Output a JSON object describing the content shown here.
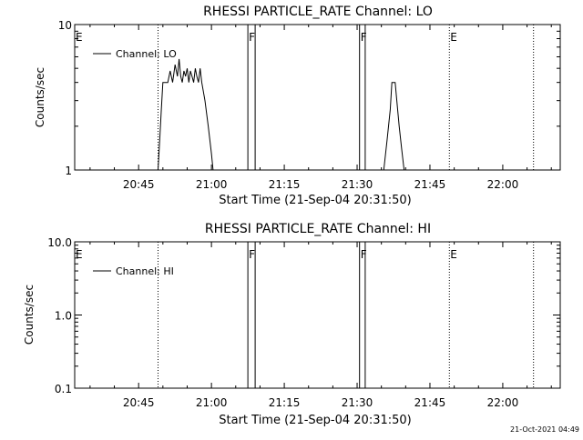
{
  "footer": {
    "timestamp": "21-Oct-2021 04:49"
  },
  "colors": {
    "background": "#ffffff",
    "ink": "#000000"
  },
  "chart_data": [
    {
      "type": "line",
      "title": "RHESSI PARTICLE_RATE Channel: LO",
      "xlabel": "Start Time (21-Sep-04 20:31:50)",
      "ylabel": "Counts/sec",
      "yscale": "log",
      "xlim": [
        "20:31:50",
        "22:11:50"
      ],
      "ylim": [
        1,
        10
      ],
      "xticks": [
        "20:45",
        "21:00",
        "21:15",
        "21:30",
        "21:45",
        "22:00"
      ],
      "yticks": [
        "1",
        "10"
      ],
      "legend": {
        "placement": "top-left",
        "entries": [
          "Channel: LO"
        ]
      },
      "flags": [
        {
          "time": "20:31:50",
          "label": "E",
          "style": "none"
        },
        {
          "time": "20:49:00",
          "label": "",
          "style": "dotted"
        },
        {
          "time": "21:07:30",
          "label": "F",
          "style": "solid"
        },
        {
          "time": "21:09:00",
          "label": "",
          "style": "solid"
        },
        {
          "time": "21:30:30",
          "label": "F",
          "style": "solid"
        },
        {
          "time": "21:31:40",
          "label": "",
          "style": "solid"
        },
        {
          "time": "21:49:00",
          "label": "E",
          "style": "dotted"
        },
        {
          "time": "22:06:20",
          "label": "",
          "style": "dotted"
        }
      ],
      "series": [
        {
          "name": "Channel: LO",
          "x": [
            "20:49:00",
            "20:49:20",
            "20:49:40",
            "20:50:00",
            "20:50:20",
            "20:51:00",
            "20:51:30",
            "20:52:00",
            "20:52:30",
            "20:53:00",
            "20:53:20",
            "20:53:40",
            "20:54:00",
            "20:54:20",
            "20:54:40",
            "20:55:00",
            "20:55:20",
            "20:55:40",
            "20:56:00",
            "20:56:20",
            "20:56:40",
            "20:57:00",
            "20:57:20",
            "20:57:40",
            "20:58:00",
            "20:58:40",
            "20:59:20",
            "21:00:00",
            "21:00:20",
            "21:00:40",
            "21:35:30",
            "21:36:10",
            "21:36:50",
            "21:37:10",
            "21:37:30",
            "21:37:50",
            "21:38:10",
            "21:38:40",
            "21:39:10",
            "21:39:40",
            "21:40:00"
          ],
          "y": [
            1,
            1.6,
            2.6,
            4,
            4,
            4,
            4.8,
            4,
            5.3,
            4.4,
            5.8,
            4.4,
            4,
            4.8,
            4.4,
            5,
            4,
            4.8,
            4.4,
            4,
            5,
            4.4,
            4,
            5,
            4,
            3,
            2,
            1.3,
            1,
            1,
            1,
            1.6,
            2.6,
            4,
            4,
            4,
            3,
            2,
            1.4,
            1,
            1
          ]
        }
      ]
    },
    {
      "type": "line",
      "title": "RHESSI PARTICLE_RATE Channel: HI",
      "xlabel": "Start Time (21-Sep-04 20:31:50)",
      "ylabel": "Counts/sec",
      "yscale": "log",
      "xlim": [
        "20:31:50",
        "22:11:50"
      ],
      "ylim": [
        0.1,
        10
      ],
      "xticks": [
        "20:45",
        "21:00",
        "21:15",
        "21:30",
        "21:45",
        "22:00"
      ],
      "yticks": [
        "0.1",
        "1.0",
        "10.0"
      ],
      "legend": {
        "placement": "top-left",
        "entries": [
          "Channel: HI"
        ]
      },
      "flags": [
        {
          "time": "20:31:50",
          "label": "E",
          "style": "none"
        },
        {
          "time": "20:49:00",
          "label": "",
          "style": "dotted"
        },
        {
          "time": "21:07:30",
          "label": "F",
          "style": "solid"
        },
        {
          "time": "21:09:00",
          "label": "",
          "style": "solid"
        },
        {
          "time": "21:30:30",
          "label": "F",
          "style": "solid"
        },
        {
          "time": "21:31:40",
          "label": "",
          "style": "solid"
        },
        {
          "time": "21:49:00",
          "label": "E",
          "style": "dotted"
        },
        {
          "time": "22:06:20",
          "label": "",
          "style": "dotted"
        }
      ],
      "series": [
        {
          "name": "Channel: HI",
          "x": [],
          "y": []
        }
      ]
    }
  ]
}
